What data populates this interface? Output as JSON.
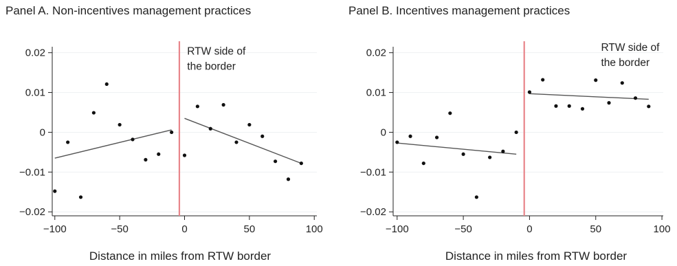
{
  "chart_data": [
    {
      "type": "scatter",
      "title": "Panel A. Non-incentives management practices",
      "xlabel": "Distance in miles from RTW border",
      "ylabel": "",
      "xlim": [
        -102,
        102
      ],
      "ylim": [
        -0.021,
        0.0215
      ],
      "xticks": [
        -100,
        -50,
        0,
        50,
        100
      ],
      "xtick_labels": [
        "−100",
        "−50",
        "0",
        "50",
        "100"
      ],
      "yticks": [
        -0.02,
        -0.01,
        0,
        0.01,
        0.02
      ],
      "ytick_labels": [
        "−0.02",
        "−0.01",
        "0",
        "0.01",
        "0.02"
      ],
      "grid": true,
      "border_x": -4,
      "annotation": {
        "lines": [
          "RTW side of",
          "the border"
        ],
        "x": 2,
        "y": 0.0195
      },
      "points": [
        {
          "x": -100,
          "y": -0.0148
        },
        {
          "x": -90,
          "y": -0.0025
        },
        {
          "x": -80,
          "y": -0.0163
        },
        {
          "x": -70,
          "y": 0.0049
        },
        {
          "x": -60,
          "y": 0.0121
        },
        {
          "x": -50,
          "y": 0.0019
        },
        {
          "x": -40,
          "y": -0.0018
        },
        {
          "x": -30,
          "y": -0.0069
        },
        {
          "x": -20,
          "y": -0.0055
        },
        {
          "x": -10,
          "y": 0.0
        },
        {
          "x": 0,
          "y": -0.0058
        },
        {
          "x": 10,
          "y": 0.0065
        },
        {
          "x": 20,
          "y": 0.0009
        },
        {
          "x": 30,
          "y": 0.0069
        },
        {
          "x": 40,
          "y": -0.0025
        },
        {
          "x": 50,
          "y": 0.0019
        },
        {
          "x": 60,
          "y": -0.001
        },
        {
          "x": 70,
          "y": -0.0073
        },
        {
          "x": 80,
          "y": -0.0118
        },
        {
          "x": 90,
          "y": -0.0078
        }
      ],
      "fit_lines": [
        {
          "x": [
            -100,
            -10
          ],
          "y": [
            -0.0065,
            0.0006
          ]
        },
        {
          "x": [
            0,
            90
          ],
          "y": [
            0.0035,
            -0.0078
          ]
        }
      ]
    },
    {
      "type": "scatter",
      "title": "Panel B. Incentives management practices",
      "xlabel": "Distance in miles from RTW border",
      "ylabel": "",
      "xlim": [
        -103,
        101
      ],
      "ylim": [
        -0.021,
        0.0215
      ],
      "xticks": [
        -100,
        -50,
        0,
        50,
        100
      ],
      "xtick_labels": [
        "−100",
        "−50",
        "0",
        "50",
        "100"
      ],
      "yticks": [
        -0.02,
        -0.01,
        0,
        0.01,
        0.02
      ],
      "ytick_labels": [
        "−0.02",
        "−0.01",
        "0",
        "0.01",
        "0.02"
      ],
      "grid": true,
      "border_x": -4,
      "annotation": {
        "lines": [
          "RTW side of",
          "the border"
        ],
        "x": 54,
        "y": 0.0205
      },
      "points": [
        {
          "x": -100,
          "y": -0.0025
        },
        {
          "x": -90,
          "y": -0.001
        },
        {
          "x": -80,
          "y": -0.0078
        },
        {
          "x": -70,
          "y": -0.0013
        },
        {
          "x": -60,
          "y": 0.0048
        },
        {
          "x": -50,
          "y": -0.0055
        },
        {
          "x": -40,
          "y": -0.0163
        },
        {
          "x": -30,
          "y": -0.0063
        },
        {
          "x": -20,
          "y": -0.0048
        },
        {
          "x": -10,
          "y": 0.0
        },
        {
          "x": 0,
          "y": 0.0101
        },
        {
          "x": 10,
          "y": 0.0132
        },
        {
          "x": 20,
          "y": 0.0066
        },
        {
          "x": 30,
          "y": 0.0066
        },
        {
          "x": 40,
          "y": 0.0059
        },
        {
          "x": 50,
          "y": 0.0131
        },
        {
          "x": 60,
          "y": 0.0074
        },
        {
          "x": 70,
          "y": 0.0124
        },
        {
          "x": 80,
          "y": 0.0086
        },
        {
          "x": 90,
          "y": 0.0065
        }
      ],
      "fit_lines": [
        {
          "x": [
            -100,
            -10
          ],
          "y": [
            -0.0027,
            -0.0055
          ]
        },
        {
          "x": [
            0,
            90
          ],
          "y": [
            0.0097,
            0.0083
          ]
        }
      ]
    }
  ]
}
